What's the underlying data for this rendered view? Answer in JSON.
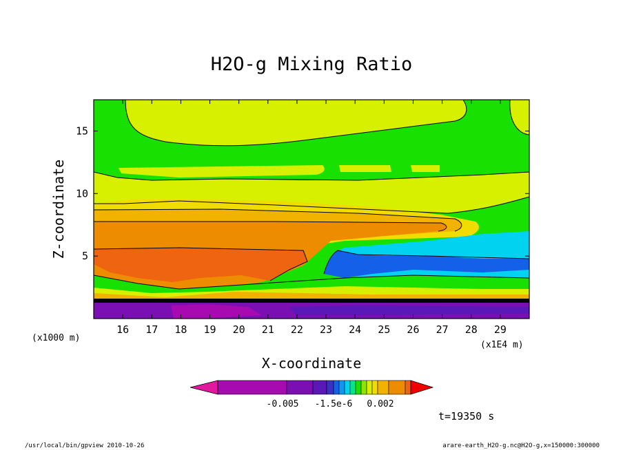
{
  "chart_data": {
    "type": "heatmap",
    "title": "H2O-g Mixing Ratio",
    "xlabel": "X-coordinate",
    "ylabel": "Z-coordinate",
    "x_unit_left": "(x1000 m)",
    "x_unit_right": "(x1E4 m)",
    "x_ticks": [
      "16",
      "17",
      "18",
      "19",
      "20",
      "21",
      "22",
      "23",
      "24",
      "25",
      "26",
      "27",
      "28",
      "29"
    ],
    "x_tick_values": [
      16,
      17,
      18,
      19,
      20,
      21,
      22,
      23,
      24,
      25,
      26,
      27,
      28,
      29
    ],
    "xlim": [
      15,
      30
    ],
    "y_ticks": [
      "5",
      "10",
      "15"
    ],
    "y_tick_values": [
      5,
      10,
      15
    ],
    "ylim": [
      0,
      17.5
    ],
    "colorbar": {
      "colors": [
        "#e0199e",
        "#a60ab0",
        "#7a10b4",
        "#5a18b8",
        "#3c30c4",
        "#1460e8",
        "#1096f4",
        "#00d2f0",
        "#00e68a",
        "#18e000",
        "#8ce600",
        "#d6f000",
        "#f0dc00",
        "#f2b200",
        "#ee8c00",
        "#ee6410",
        "#f00000"
      ],
      "tick_labels": [
        "-0.005",
        "-1.5e-6",
        "0.002"
      ]
    },
    "time_label": "t=19350 s",
    "footer_left": "/usr/local/bin/gpview  2010-10-26",
    "footer_right": "arare-earth_H2O-g.nc@H2O-g,x=150000:300000"
  }
}
